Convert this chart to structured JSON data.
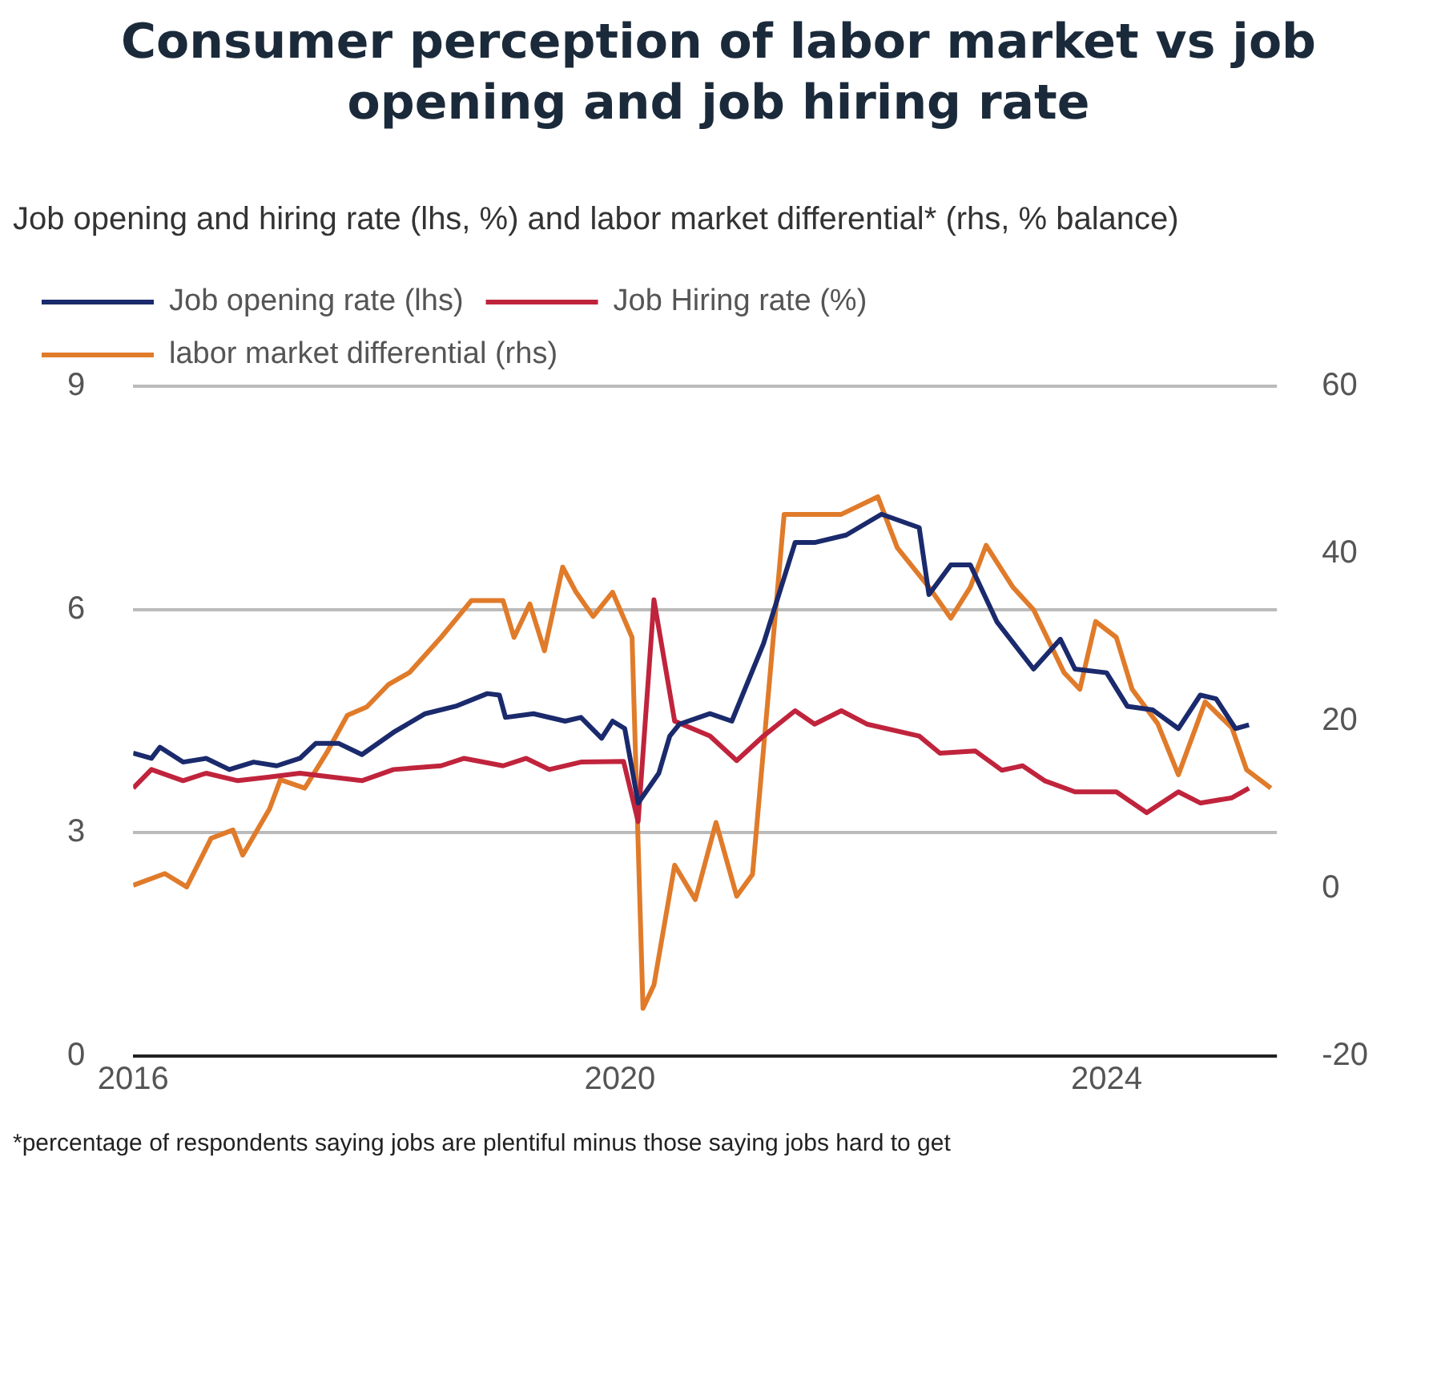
{
  "chart_data": {
    "type": "line",
    "title": "Consumer perception of labor market vs job opening and job hiring rate",
    "subtitle": "Job opening and hiring rate (lhs, %) and labor market differential* (rhs, % balance)",
    "annotations": [
      "*percentage of respondents saying jobs are plentiful minus those saying jobs hard to get"
    ],
    "xlim": [
      2016,
      2025.4
    ],
    "xticks": [
      2016,
      2020,
      2024
    ],
    "ylim": [
      0,
      9
    ],
    "yticks": [
      0,
      3,
      6,
      9
    ],
    "y2lim": [
      -20,
      60
    ],
    "y2ticks": [
      -20,
      0,
      20,
      40,
      60
    ],
    "grid": "y",
    "legend": "top left",
    "marker": "none",
    "line_style": "solid",
    "series": [
      {
        "name": "Job opening rate (lhs)",
        "color": "#1a2a6c",
        "x": [
          2016,
          2016.15,
          2016.22,
          2016.41,
          2016.6,
          2016.79,
          2016.99,
          2017.18,
          2017.37,
          2017.5,
          2017.69,
          2017.88,
          2018.14,
          2018.4,
          2018.65,
          2018.91,
          2019.01,
          2019.06,
          2019.29,
          2019.55,
          2019.68,
          2019.85,
          2019.94,
          2020.04,
          2020.15,
          2020.32,
          2020.41,
          2020.49,
          2020.74,
          2020.92,
          2021.18,
          2021.44,
          2021.6,
          2021.86,
          2022.15,
          2022.46,
          2022.54,
          2022.72,
          2022.88,
          2023.1,
          2023.4,
          2023.62,
          2023.74,
          2024,
          2024.17,
          2024.38,
          2024.59,
          2024.77,
          2024.9,
          2025.06,
          2025.17
        ],
        "values": [
          4.07,
          4.0,
          4.15,
          3.95,
          4.0,
          3.85,
          3.95,
          3.9,
          4.0,
          4.2,
          4.2,
          4.05,
          4.35,
          4.6,
          4.7,
          4.87,
          4.85,
          4.55,
          4.6,
          4.5,
          4.55,
          4.27,
          4.5,
          4.4,
          3.4,
          3.8,
          4.3,
          4.46,
          4.6,
          4.5,
          5.54,
          6.9,
          6.9,
          7.0,
          7.28,
          7.1,
          6.2,
          6.6,
          6.6,
          5.83,
          5.2,
          5.6,
          5.2,
          5.15,
          4.7,
          4.65,
          4.4,
          4.85,
          4.8,
          4.4,
          4.45
        ]
      },
      {
        "name": "Job Hiring rate (%)",
        "color": "#c0243c",
        "x": [
          2016,
          2016.15,
          2016.41,
          2016.6,
          2016.86,
          2017.12,
          2017.37,
          2017.63,
          2017.88,
          2018.14,
          2018.53,
          2018.72,
          2019.04,
          2019.23,
          2019.42,
          2019.68,
          2020.03,
          2020.15,
          2020.28,
          2020.45,
          2020.74,
          2020.96,
          2021.18,
          2021.44,
          2021.6,
          2021.82,
          2022.03,
          2022.46,
          2022.63,
          2022.92,
          2023.14,
          2023.31,
          2023.49,
          2023.74,
          2024.08,
          2024.33,
          2024.59,
          2024.77,
          2025.03,
          2025.17
        ],
        "values": [
          3.6,
          3.85,
          3.7,
          3.8,
          3.7,
          3.75,
          3.8,
          3.75,
          3.7,
          3.85,
          3.9,
          4.0,
          3.9,
          4.0,
          3.85,
          3.95,
          3.96,
          3.15,
          6.13,
          4.5,
          4.3,
          3.97,
          4.3,
          4.64,
          4.46,
          4.64,
          4.46,
          4.3,
          4.07,
          4.1,
          3.84,
          3.9,
          3.7,
          3.55,
          3.55,
          3.27,
          3.55,
          3.4,
          3.47,
          3.6
        ]
      },
      {
        "name": "labor market differential (rhs)",
        "color": "#e07b2a",
        "axis": "y2",
        "x": [
          2016,
          2016.26,
          2016.44,
          2016.64,
          2016.82,
          2016.9,
          2017.12,
          2017.21,
          2017.41,
          2017.59,
          2017.76,
          2017.92,
          2018.1,
          2018.27,
          2018.53,
          2018.78,
          2019.04,
          2019.13,
          2019.26,
          2019.38,
          2019.53,
          2019.64,
          2019.78,
          2019.94,
          2020.1,
          2020.19,
          2020.28,
          2020.45,
          2020.62,
          2020.79,
          2020.96,
          2021.09,
          2021.35,
          2021.6,
          2021.82,
          2022.12,
          2022.28,
          2022.54,
          2022.72,
          2022.88,
          2023.01,
          2023.23,
          2023.4,
          2023.65,
          2023.78,
          2023.91,
          2024.08,
          2024.21,
          2024.42,
          2024.59,
          2024.81,
          2025.03,
          2025.15,
          2025.35
        ],
        "values": [
          0.4,
          1.8,
          0.2,
          6,
          7,
          4,
          9.5,
          13,
          12,
          16.2,
          20.7,
          21.7,
          24.4,
          25.8,
          30,
          34.4,
          34.4,
          30,
          34,
          28.4,
          38.4,
          35.4,
          32.5,
          35.4,
          30,
          -14.3,
          -11.5,
          2.8,
          -1.3,
          7.9,
          -0.9,
          1.7,
          44.7,
          44.7,
          44.7,
          46.8,
          40.7,
          36,
          32.3,
          36,
          41,
          36,
          33.3,
          25.8,
          23.8,
          31.9,
          30,
          23.8,
          19.7,
          13.6,
          22.3,
          19.2,
          14.2,
          12
        ]
      }
    ]
  }
}
